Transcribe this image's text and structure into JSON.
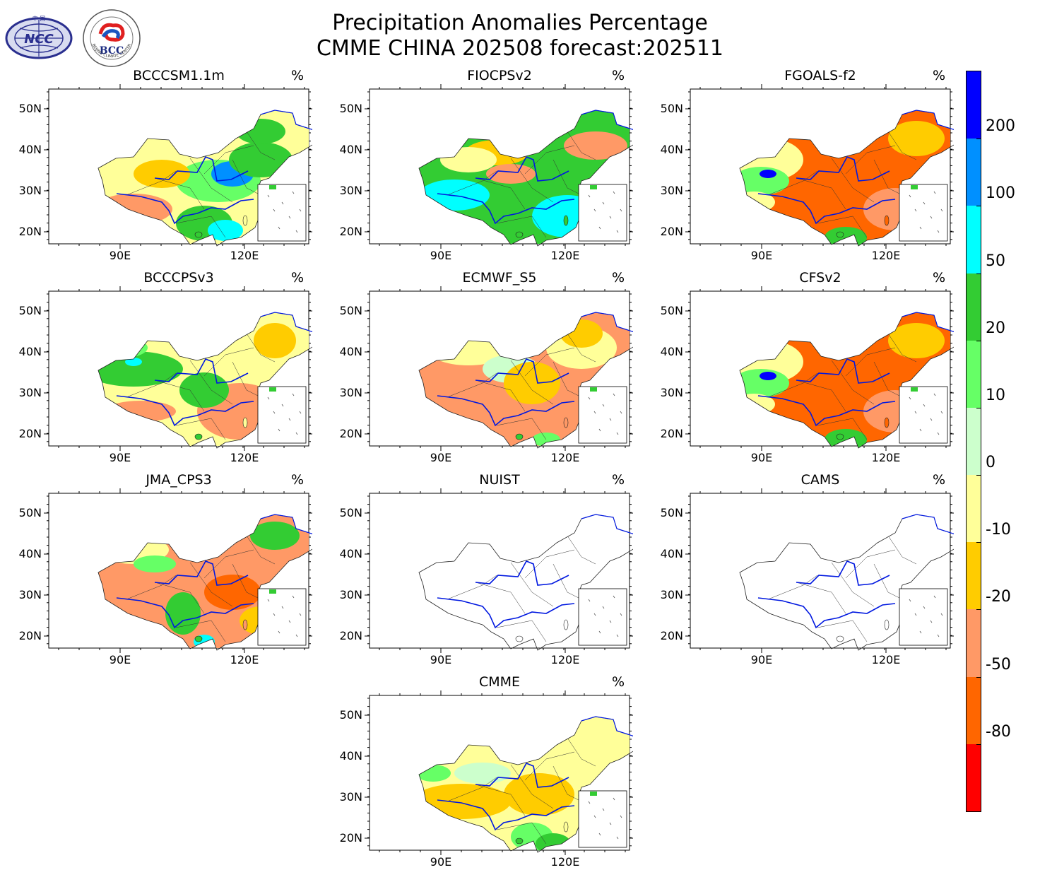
{
  "header": {
    "title_line1": "Precipitation Anomalies Percentage",
    "title_line2": "CMME CHINA 202508 forecast:202511"
  },
  "logos": [
    {
      "name": "ncc-logo",
      "text": "NCC",
      "caption": "中 国"
    },
    {
      "name": "bcc-logo",
      "text": "BCC",
      "caption": "BEIJING CLIMATE CENTER"
    }
  ],
  "map_axes": {
    "lat_ticks": [
      "50N",
      "40N",
      "30N",
      "20N"
    ],
    "lon_ticks": [
      "90E",
      "120E"
    ]
  },
  "panels": [
    {
      "title": "BCCCSM1.1m",
      "unit": "%",
      "pattern": "green-wet",
      "empty": false
    },
    {
      "title": "FIOCPSv2",
      "unit": "%",
      "pattern": "wet",
      "empty": false
    },
    {
      "title": "FGOALS-f2",
      "unit": "%",
      "pattern": "dry",
      "empty": false
    },
    {
      "title": "BCCCPSv3",
      "unit": "%",
      "pattern": "green-west",
      "empty": false
    },
    {
      "title": "ECMWF_S5",
      "unit": "%",
      "pattern": "dry-south",
      "empty": false
    },
    {
      "title": "CFSv2",
      "unit": "%",
      "pattern": "dry",
      "empty": false
    },
    {
      "title": "JMA_CPS3",
      "unit": "%",
      "pattern": "dry-east",
      "empty": false
    },
    {
      "title": "NUIST",
      "unit": "%",
      "pattern": "none",
      "empty": true
    },
    {
      "title": "CAMS",
      "unit": "%",
      "pattern": "none",
      "empty": true
    },
    {
      "title": "CMME",
      "unit": "%",
      "pattern": "mixed",
      "empty": false
    }
  ],
  "colorbar": {
    "labels": [
      "200",
      "100",
      "50",
      "20",
      "10",
      "0",
      "-10",
      "-20",
      "-50",
      "-80"
    ],
    "colors": [
      "#0000ff",
      "#0090ff",
      "#00ffff",
      "#33cc33",
      "#66ff66",
      "#ccffcc",
      "#ffff99",
      "#ffcc00",
      "#ff9966",
      "#ff6600",
      "#ff0000"
    ]
  }
}
